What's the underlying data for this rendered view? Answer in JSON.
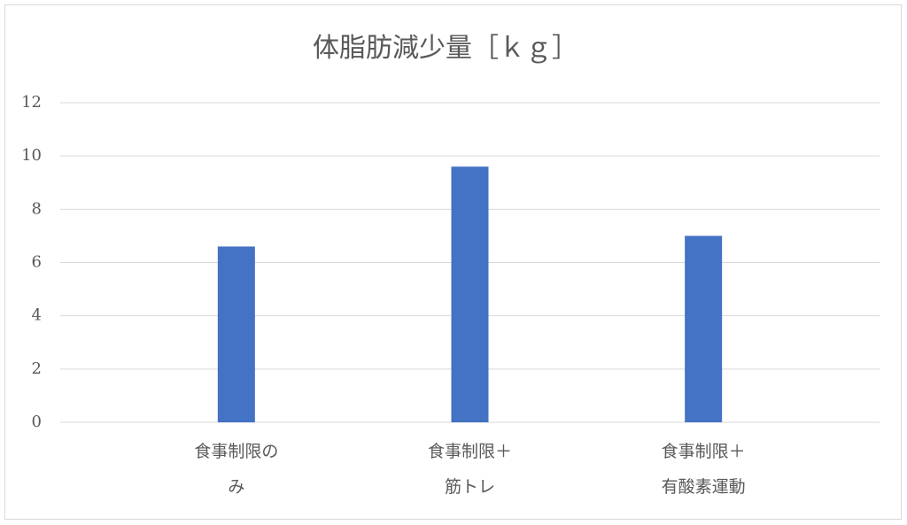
{
  "chart_data": {
    "type": "bar",
    "title": "体脂肪減少量［ｋｇ］",
    "categories": [
      "食事制限のみ",
      "食事制限＋筋トレ",
      "食事制限＋有酸素運動"
    ],
    "values": [
      6.6,
      9.6,
      7.0
    ],
    "color": "#4472c4",
    "ylim": [
      0,
      12
    ],
    "yticks": [
      0,
      2,
      4,
      6,
      8,
      10,
      12
    ],
    "grid": true
  }
}
